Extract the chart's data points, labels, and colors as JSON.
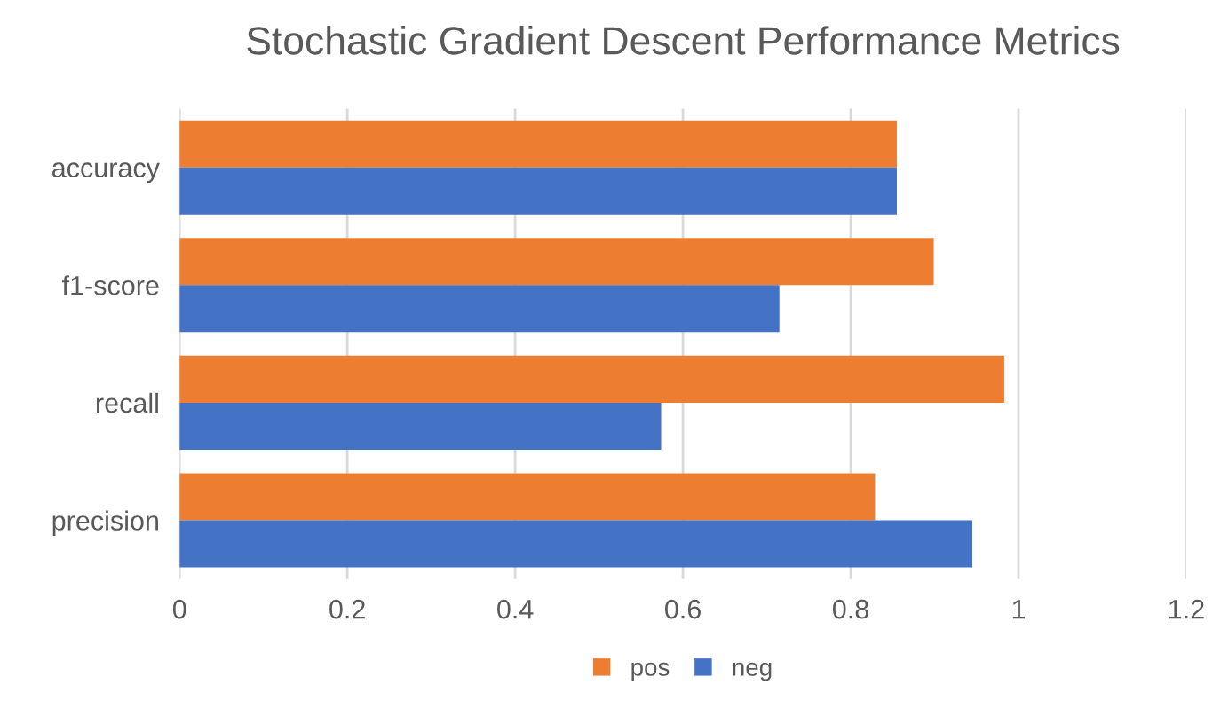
{
  "chart_data": {
    "type": "bar",
    "orientation": "horizontal",
    "title": "Stochastic Gradient Descent Performance Metrics",
    "categories": [
      "accuracy",
      "f1-score",
      "recall",
      "precision"
    ],
    "series": [
      {
        "name": "pos",
        "color": "#ed7d31",
        "values": [
          0.855,
          0.899,
          0.983,
          0.829
        ]
      },
      {
        "name": "neg",
        "color": "#4472c4",
        "values": [
          0.855,
          0.715,
          0.574,
          0.945
        ]
      }
    ],
    "xlim": [
      0,
      1.2
    ],
    "xticks": [
      0,
      0.2,
      0.4,
      0.6,
      0.8,
      1,
      1.2
    ],
    "grid": "x",
    "legend": "bottom"
  }
}
